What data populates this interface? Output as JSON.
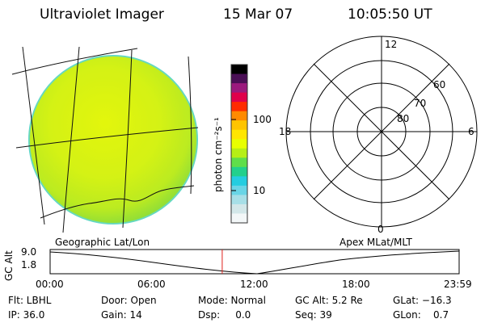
{
  "header": {
    "instrument": "Ultraviolet Imager",
    "date": "15 Mar 07",
    "time": "10:05:50 UT"
  },
  "colorbar": {
    "unit_label": "photon cm⁻²s⁻¹",
    "ticks": [
      "100",
      "10"
    ],
    "colors": [
      "#000000",
      "#4a0f55",
      "#9b1a7d",
      "#e0004b",
      "#ff2b00",
      "#ff8a00",
      "#ffc400",
      "#ffe600",
      "#e8ff00",
      "#b6ef16",
      "#5fde4a",
      "#22d08c",
      "#24cde0",
      "#69d5e6",
      "#a7dfe7",
      "#d3e7e9",
      "#f3f7f8"
    ]
  },
  "polar_plot": {
    "mlt_labels": {
      "top": "12",
      "left": "18",
      "right": "6",
      "bottom": "0"
    },
    "lat_labels": [
      "60",
      "70",
      "80"
    ]
  },
  "timeline": {
    "left_label": "Geographic Lat/Lon",
    "right_label": "Apex MLat/MLT",
    "axis_label": "GC Alt",
    "y_ticks": [
      "9.0",
      "1.8"
    ],
    "x_ticks": [
      "00:00",
      "06:00",
      "12:00",
      "18:00",
      "23:59"
    ],
    "current_time_hours": 10.1
  },
  "footer": {
    "flt": "Flt: LBHL",
    "ip": "IP: 36.0",
    "door": "Door: Open",
    "gain": "Gain: 14",
    "mode": "Mode: Normal",
    "dsp": "Dsp:     0.0",
    "gc_alt": "GC Alt: 5.2 Re",
    "seq": "Seq: 39",
    "glat": "GLat: −16.3",
    "glon": "GLon:    0.7"
  }
}
